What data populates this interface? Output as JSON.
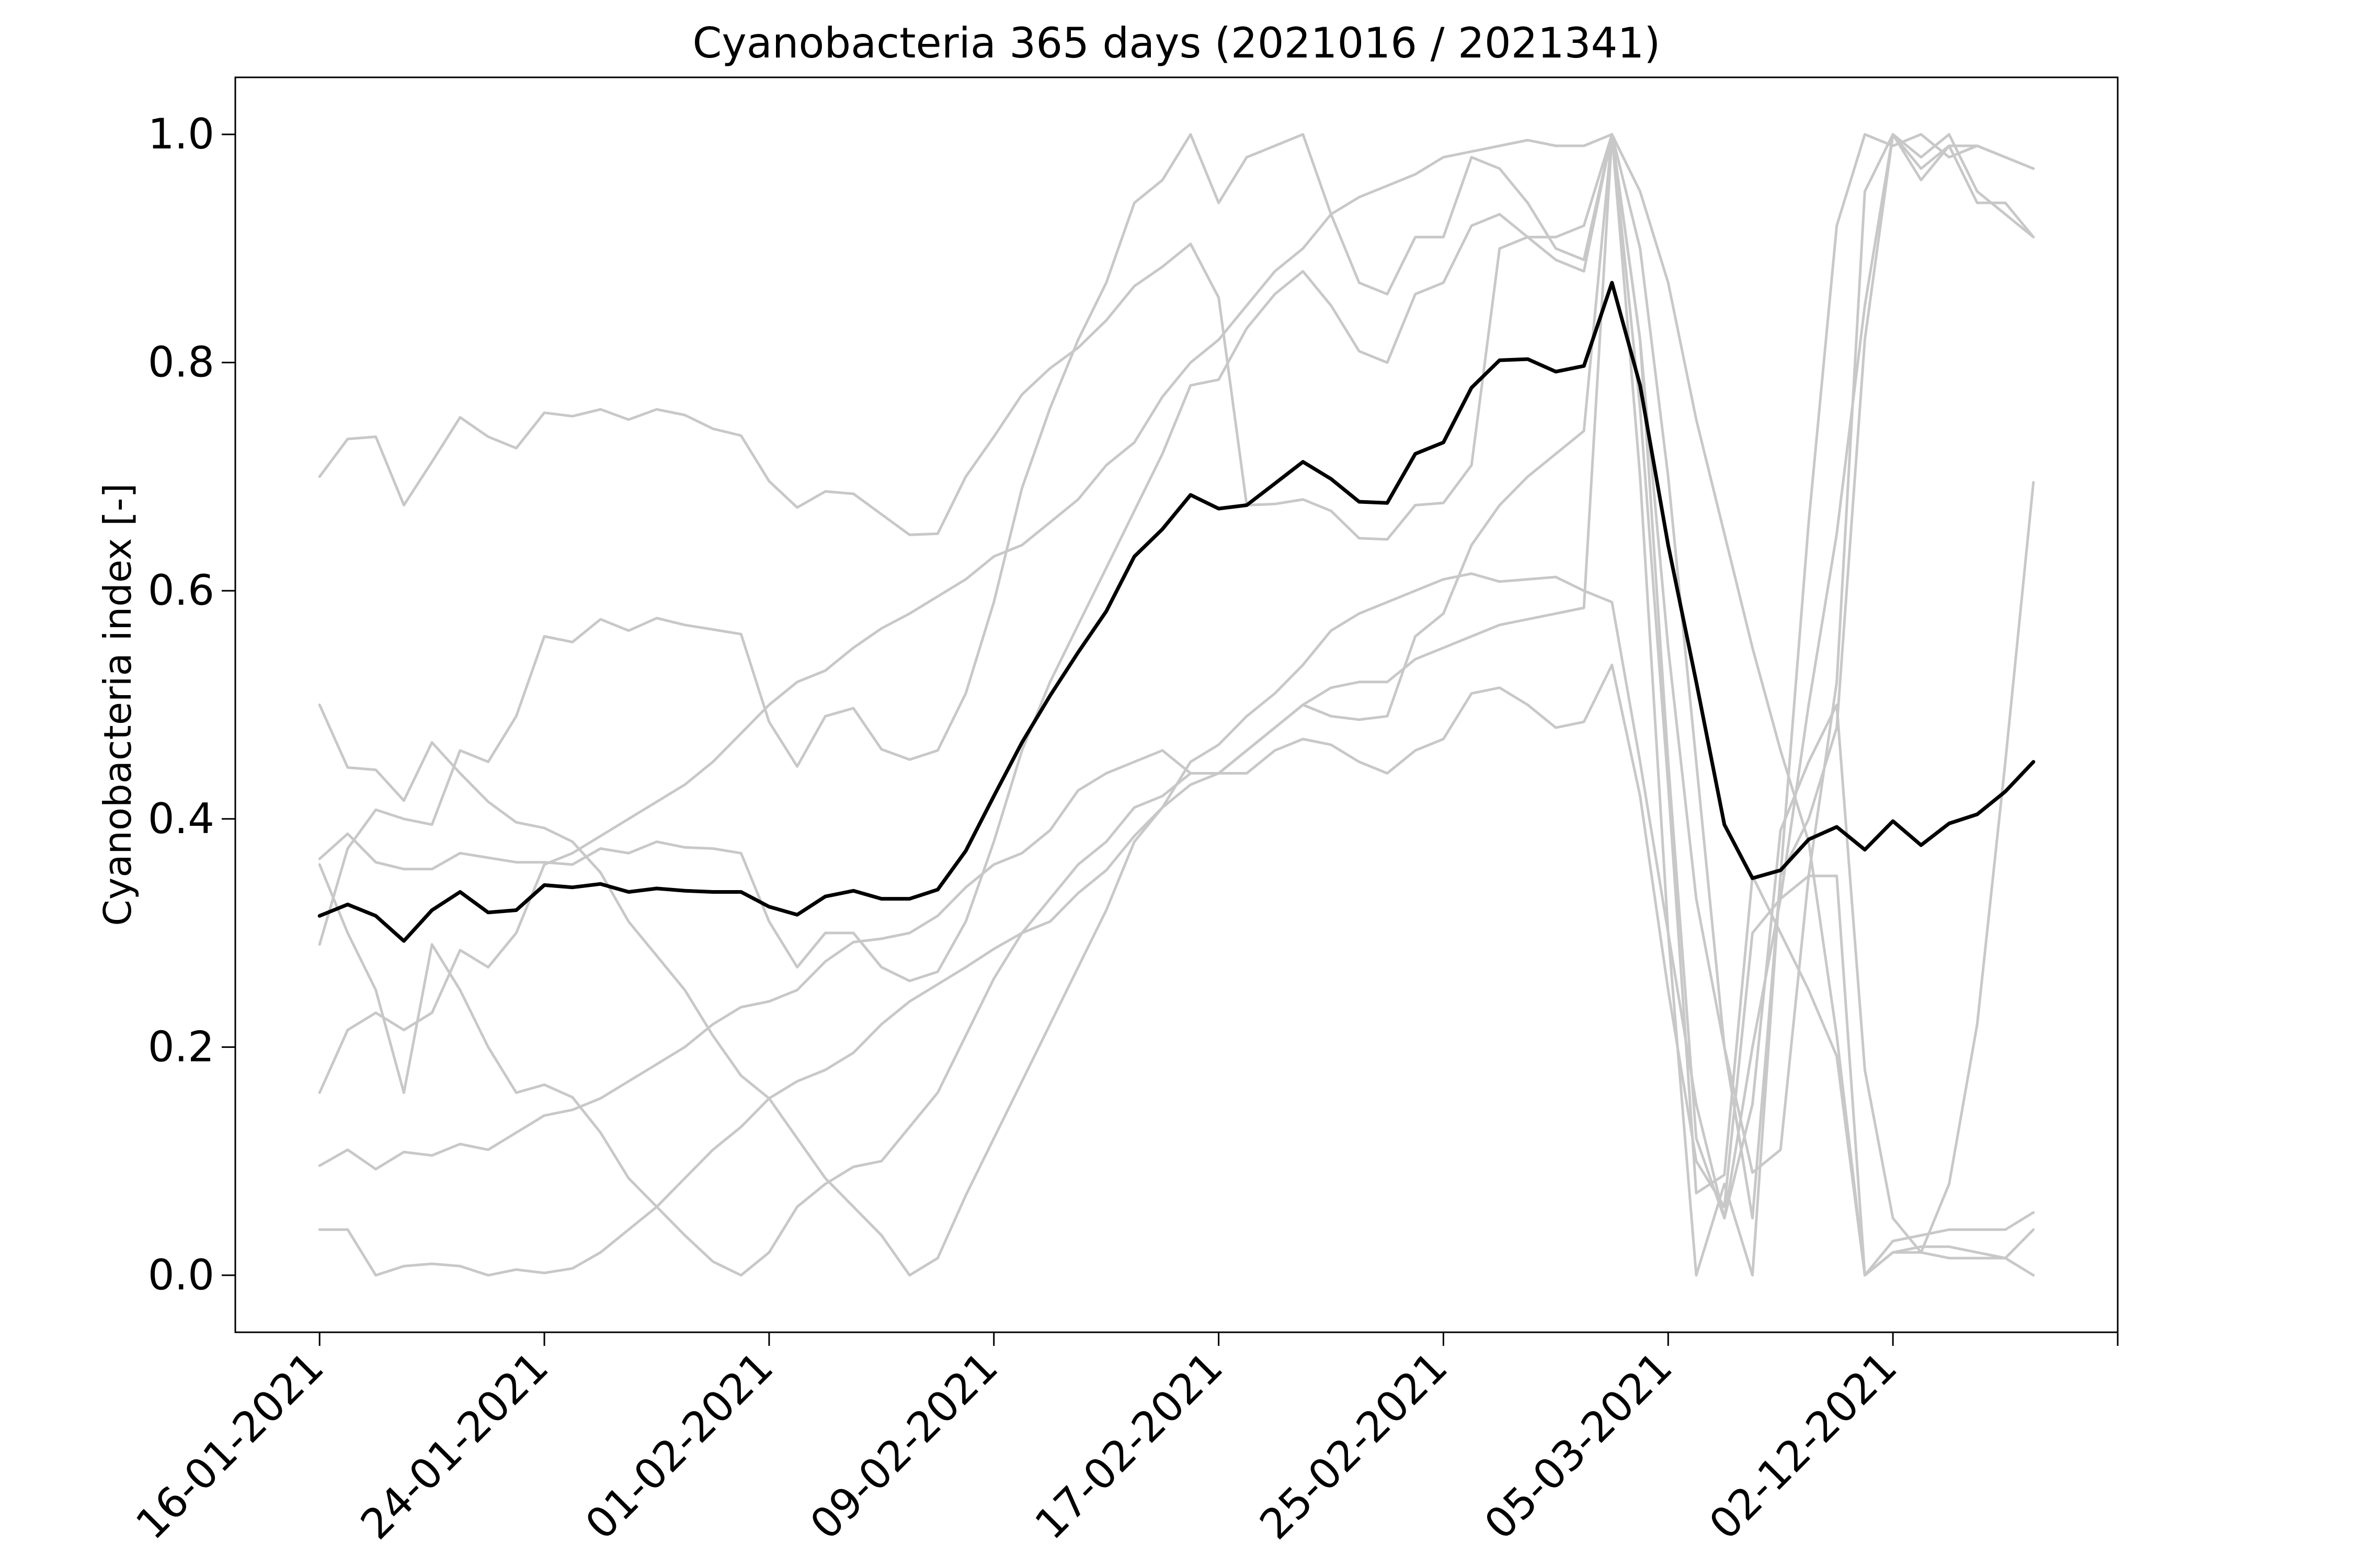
{
  "chart_data": {
    "type": "line",
    "title": "Cyanobacteria 365 days (2021016 / 2021341)",
    "xlabel": "",
    "ylabel": "Cyanobacteria index [-]",
    "ylim": [
      -0.05,
      1.05
    ],
    "xlim": [
      -3,
      64
    ],
    "yticks": [
      0.0,
      0.2,
      0.4,
      0.6,
      0.8,
      1.0
    ],
    "ytick_labels": [
      "0.0",
      "0.2",
      "0.4",
      "0.6",
      "0.8",
      "1.0"
    ],
    "xticks": [
      0,
      8,
      16,
      24,
      32,
      40,
      48,
      56,
      64
    ],
    "xtick_labels": [
      "16-01-2021",
      "24-01-2021",
      "01-02-2021",
      "09-02-2021",
      "17-02-2021",
      "25-02-2021",
      "05-03-2021",
      "02-12-2021",
      ""
    ],
    "grid": false,
    "legend": false,
    "x": [
      0,
      1,
      2,
      3,
      4,
      5,
      6,
      7,
      8,
      9,
      10,
      11,
      12,
      13,
      14,
      15,
      16,
      17,
      18,
      19,
      20,
      21,
      22,
      23,
      24,
      25,
      26,
      27,
      28,
      29,
      30,
      31,
      32,
      33,
      34,
      35,
      36,
      37,
      38,
      39,
      40,
      41,
      42,
      43,
      44,
      45,
      46,
      47,
      48,
      49,
      50,
      51,
      52,
      53,
      54,
      55,
      56,
      57,
      58,
      59,
      60,
      61
    ],
    "colors": {
      "mean": "#000000",
      "individual": "#c8c8c8"
    },
    "series": [
      {
        "role": "mean",
        "values": [
          0.315,
          0.325,
          0.315,
          0.293,
          0.32,
          0.336,
          0.318,
          0.32,
          0.342,
          0.34,
          0.343,
          0.336,
          0.339,
          0.337,
          0.336,
          0.336,
          0.323,
          0.316,
          0.332,
          0.337,
          0.33,
          0.33,
          0.338,
          0.372,
          0.42,
          0.467,
          0.508,
          0.546,
          0.582,
          0.63,
          0.654,
          0.684,
          0.672,
          0.675,
          0.694,
          0.713,
          0.698,
          0.678,
          0.677,
          0.72,
          0.73,
          0.778,
          0.802,
          0.803,
          0.792,
          0.797,
          0.87,
          0.78,
          0.64,
          0.52,
          0.395,
          0.348,
          0.355,
          0.382,
          0.393,
          0.373,
          0.398,
          0.377,
          0.396,
          0.404,
          0.424,
          0.45
        ]
      },
      {
        "role": "individual",
        "values": [
          0.7,
          0.733,
          0.735,
          0.675,
          0.713,
          0.752,
          0.735,
          0.725,
          0.756,
          0.753,
          0.759,
          0.75,
          0.759,
          0.754,
          0.742,
          0.736,
          0.696,
          0.673,
          0.687,
          0.685,
          0.667,
          0.649,
          0.65,
          0.7,
          0.735,
          0.772,
          0.795,
          0.813,
          0.837,
          0.867,
          0.884,
          0.904,
          0.857,
          0.675,
          0.676,
          0.68,
          0.67,
          0.646,
          0.645,
          0.675,
          0.677,
          0.71,
          0.9,
          0.91,
          0.91,
          0.92,
          1.0,
          0.76,
          0.43,
          0.072,
          0.088,
          0.35,
          0.3,
          0.25,
          0.192,
          0.0,
          0.02,
          0.025,
          0.025,
          0.02,
          0.015,
          0.0
        ]
      },
      {
        "role": "individual",
        "values": [
          0.5,
          0.445,
          0.443,
          0.416,
          0.467,
          0.44,
          0.415,
          0.397,
          0.392,
          0.38,
          0.353,
          0.31,
          0.28,
          0.25,
          0.21,
          0.175,
          0.155,
          0.12,
          0.085,
          0.06,
          0.035,
          0.0,
          0.015,
          0.07,
          0.12,
          0.17,
          0.22,
          0.27,
          0.32,
          0.38,
          0.41,
          0.45,
          0.465,
          0.49,
          0.51,
          0.535,
          0.565,
          0.58,
          0.59,
          0.6,
          0.61,
          0.615,
          0.608,
          0.61,
          0.612,
          0.6,
          0.59,
          0.45,
          0.3,
          0.15,
          0.05,
          0.2,
          0.33,
          0.5,
          0.65,
          0.85,
          1.0,
          0.98,
          1.0,
          0.95,
          0.93,
          0.91
        ]
      },
      {
        "role": "individual",
        "values": [
          0.365,
          0.387,
          0.362,
          0.356,
          0.356,
          0.37,
          0.366,
          0.362,
          0.362,
          0.36,
          0.374,
          0.37,
          0.38,
          0.375,
          0.374,
          0.37,
          0.31,
          0.27,
          0.3,
          0.3,
          0.27,
          0.258,
          0.266,
          0.31,
          0.38,
          0.46,
          0.52,
          0.57,
          0.62,
          0.67,
          0.72,
          0.78,
          0.785,
          0.83,
          0.86,
          0.88,
          0.85,
          0.81,
          0.8,
          0.86,
          0.87,
          0.92,
          0.93,
          0.91,
          0.89,
          0.88,
          1.0,
          0.82,
          0.55,
          0.33,
          0.2,
          0.09,
          0.11,
          0.35,
          0.52,
          0.95,
          1.0,
          0.96,
          0.99,
          0.99,
          0.98,
          0.97
        ]
      },
      {
        "role": "individual",
        "values": [
          0.29,
          0.374,
          0.408,
          0.4,
          0.395,
          0.46,
          0.45,
          0.49,
          0.56,
          0.555,
          0.575,
          0.565,
          0.576,
          0.57,
          0.566,
          0.562,
          0.485,
          0.446,
          0.49,
          0.497,
          0.461,
          0.452,
          0.46,
          0.51,
          0.59,
          0.69,
          0.76,
          0.82,
          0.87,
          0.94,
          0.96,
          1.0,
          0.94,
          0.98,
          0.99,
          1.0,
          0.93,
          0.87,
          0.86,
          0.91,
          0.91,
          0.98,
          0.97,
          0.94,
          0.9,
          0.89,
          1.0,
          0.9,
          0.7,
          0.45,
          0.2,
          0.05,
          0.35,
          0.4,
          0.48,
          0.82,
          1.0,
          0.97,
          0.99,
          0.94,
          0.94,
          0.91
        ]
      },
      {
        "role": "individual",
        "values": [
          0.36,
          0.3,
          0.25,
          0.16,
          0.29,
          0.25,
          0.2,
          0.16,
          0.167,
          0.156,
          0.125,
          0.085,
          0.06,
          0.035,
          0.012,
          0.0,
          0.02,
          0.06,
          0.08,
          0.095,
          0.1,
          0.13,
          0.16,
          0.21,
          0.26,
          0.3,
          0.33,
          0.36,
          0.38,
          0.41,
          0.42,
          0.44,
          0.44,
          0.46,
          0.48,
          0.5,
          0.49,
          0.487,
          0.49,
          0.56,
          0.58,
          0.64,
          0.675,
          0.7,
          0.72,
          0.74,
          1.0,
          0.7,
          0.3,
          0.0,
          0.08,
          0.0,
          0.35,
          0.66,
          0.92,
          1.0,
          0.99,
          1.0,
          0.98,
          0.99,
          0.98,
          0.97
        ]
      },
      {
        "role": "individual",
        "values": [
          0.16,
          0.215,
          0.23,
          0.215,
          0.23,
          0.285,
          0.27,
          0.3,
          0.36,
          0.37,
          0.385,
          0.4,
          0.415,
          0.43,
          0.45,
          0.475,
          0.5,
          0.52,
          0.53,
          0.55,
          0.567,
          0.58,
          0.595,
          0.61,
          0.63,
          0.64,
          0.66,
          0.68,
          0.71,
          0.73,
          0.77,
          0.8,
          0.82,
          0.85,
          0.88,
          0.9,
          0.93,
          0.945,
          0.955,
          0.965,
          0.98,
          0.985,
          0.99,
          0.995,
          0.99,
          0.99,
          1.0,
          0.95,
          0.87,
          0.75,
          0.65,
          0.55,
          0.46,
          0.38,
          0.21,
          0.0,
          0.03,
          0.035,
          0.04,
          0.04,
          0.04,
          0.055
        ]
      },
      {
        "role": "individual",
        "values": [
          0.096,
          0.11,
          0.093,
          0.108,
          0.105,
          0.115,
          0.11,
          0.125,
          0.14,
          0.145,
          0.155,
          0.17,
          0.185,
          0.2,
          0.22,
          0.235,
          0.24,
          0.25,
          0.275,
          0.292,
          0.295,
          0.3,
          0.315,
          0.34,
          0.36,
          0.37,
          0.39,
          0.425,
          0.44,
          0.45,
          0.46,
          0.44,
          0.44,
          0.46,
          0.48,
          0.5,
          0.515,
          0.52,
          0.52,
          0.54,
          0.55,
          0.56,
          0.57,
          0.575,
          0.58,
          0.585,
          1.0,
          0.82,
          0.45,
          0.12,
          0.05,
          0.15,
          0.39,
          0.45,
          0.5,
          0.18,
          0.05,
          0.02,
          0.015,
          0.015,
          0.015,
          0.04
        ]
      },
      {
        "role": "individual",
        "values": [
          0.04,
          0.04,
          0.0,
          0.008,
          0.01,
          0.008,
          0.0,
          0.005,
          0.002,
          0.006,
          0.02,
          0.04,
          0.06,
          0.085,
          0.11,
          0.13,
          0.155,
          0.17,
          0.18,
          0.195,
          0.22,
          0.24,
          0.255,
          0.27,
          0.286,
          0.3,
          0.31,
          0.335,
          0.355,
          0.385,
          0.41,
          0.43,
          0.44,
          0.44,
          0.46,
          0.47,
          0.465,
          0.45,
          0.44,
          0.46,
          0.47,
          0.51,
          0.515,
          0.5,
          0.48,
          0.485,
          0.535,
          0.42,
          0.25,
          0.1,
          0.06,
          0.3,
          0.33,
          0.35,
          0.35,
          0.0,
          0.02,
          0.02,
          0.08,
          0.22,
          0.45,
          0.695
        ]
      }
    ]
  }
}
